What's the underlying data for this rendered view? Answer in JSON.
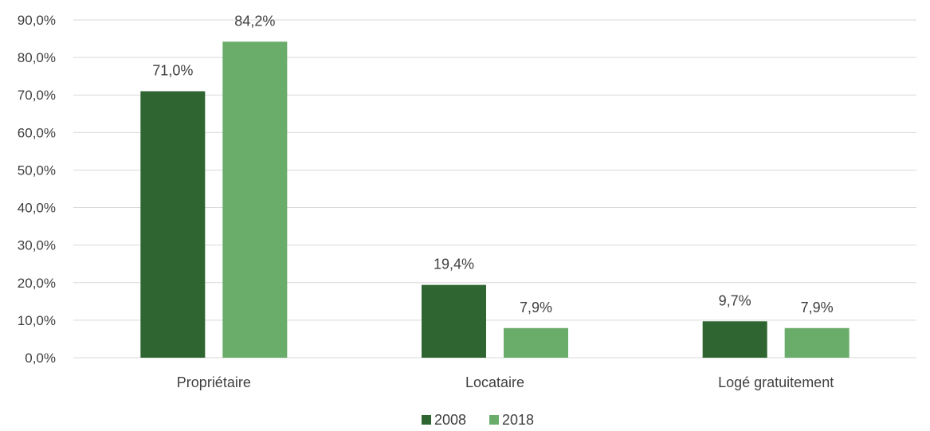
{
  "chart_data": {
    "type": "bar",
    "categories": [
      "Propriétaire",
      "Locataire",
      "Logé gratuitement"
    ],
    "series": [
      {
        "name": "2008",
        "values": [
          71.0,
          19.4,
          9.7
        ],
        "labels": [
          "71,0%",
          "19,4%",
          "9,7%"
        ],
        "color": "#2f6530"
      },
      {
        "name": "2018",
        "values": [
          84.2,
          7.9,
          7.9
        ],
        "labels": [
          "84,2%",
          "7,9%",
          "7,9%"
        ],
        "color": "#6aad6b"
      }
    ],
    "ylim": [
      0,
      90
    ],
    "yticks": [
      0,
      10,
      20,
      30,
      40,
      50,
      60,
      70,
      80,
      90
    ],
    "ytick_labels": [
      "0,0%",
      "10,0%",
      "20,0%",
      "30,0%",
      "40,0%",
      "50,0%",
      "60,0%",
      "70,0%",
      "80,0%",
      "90,0%"
    ],
    "grid": true,
    "legend_position": "bottom",
    "title": "",
    "xlabel": "",
    "ylabel": ""
  }
}
